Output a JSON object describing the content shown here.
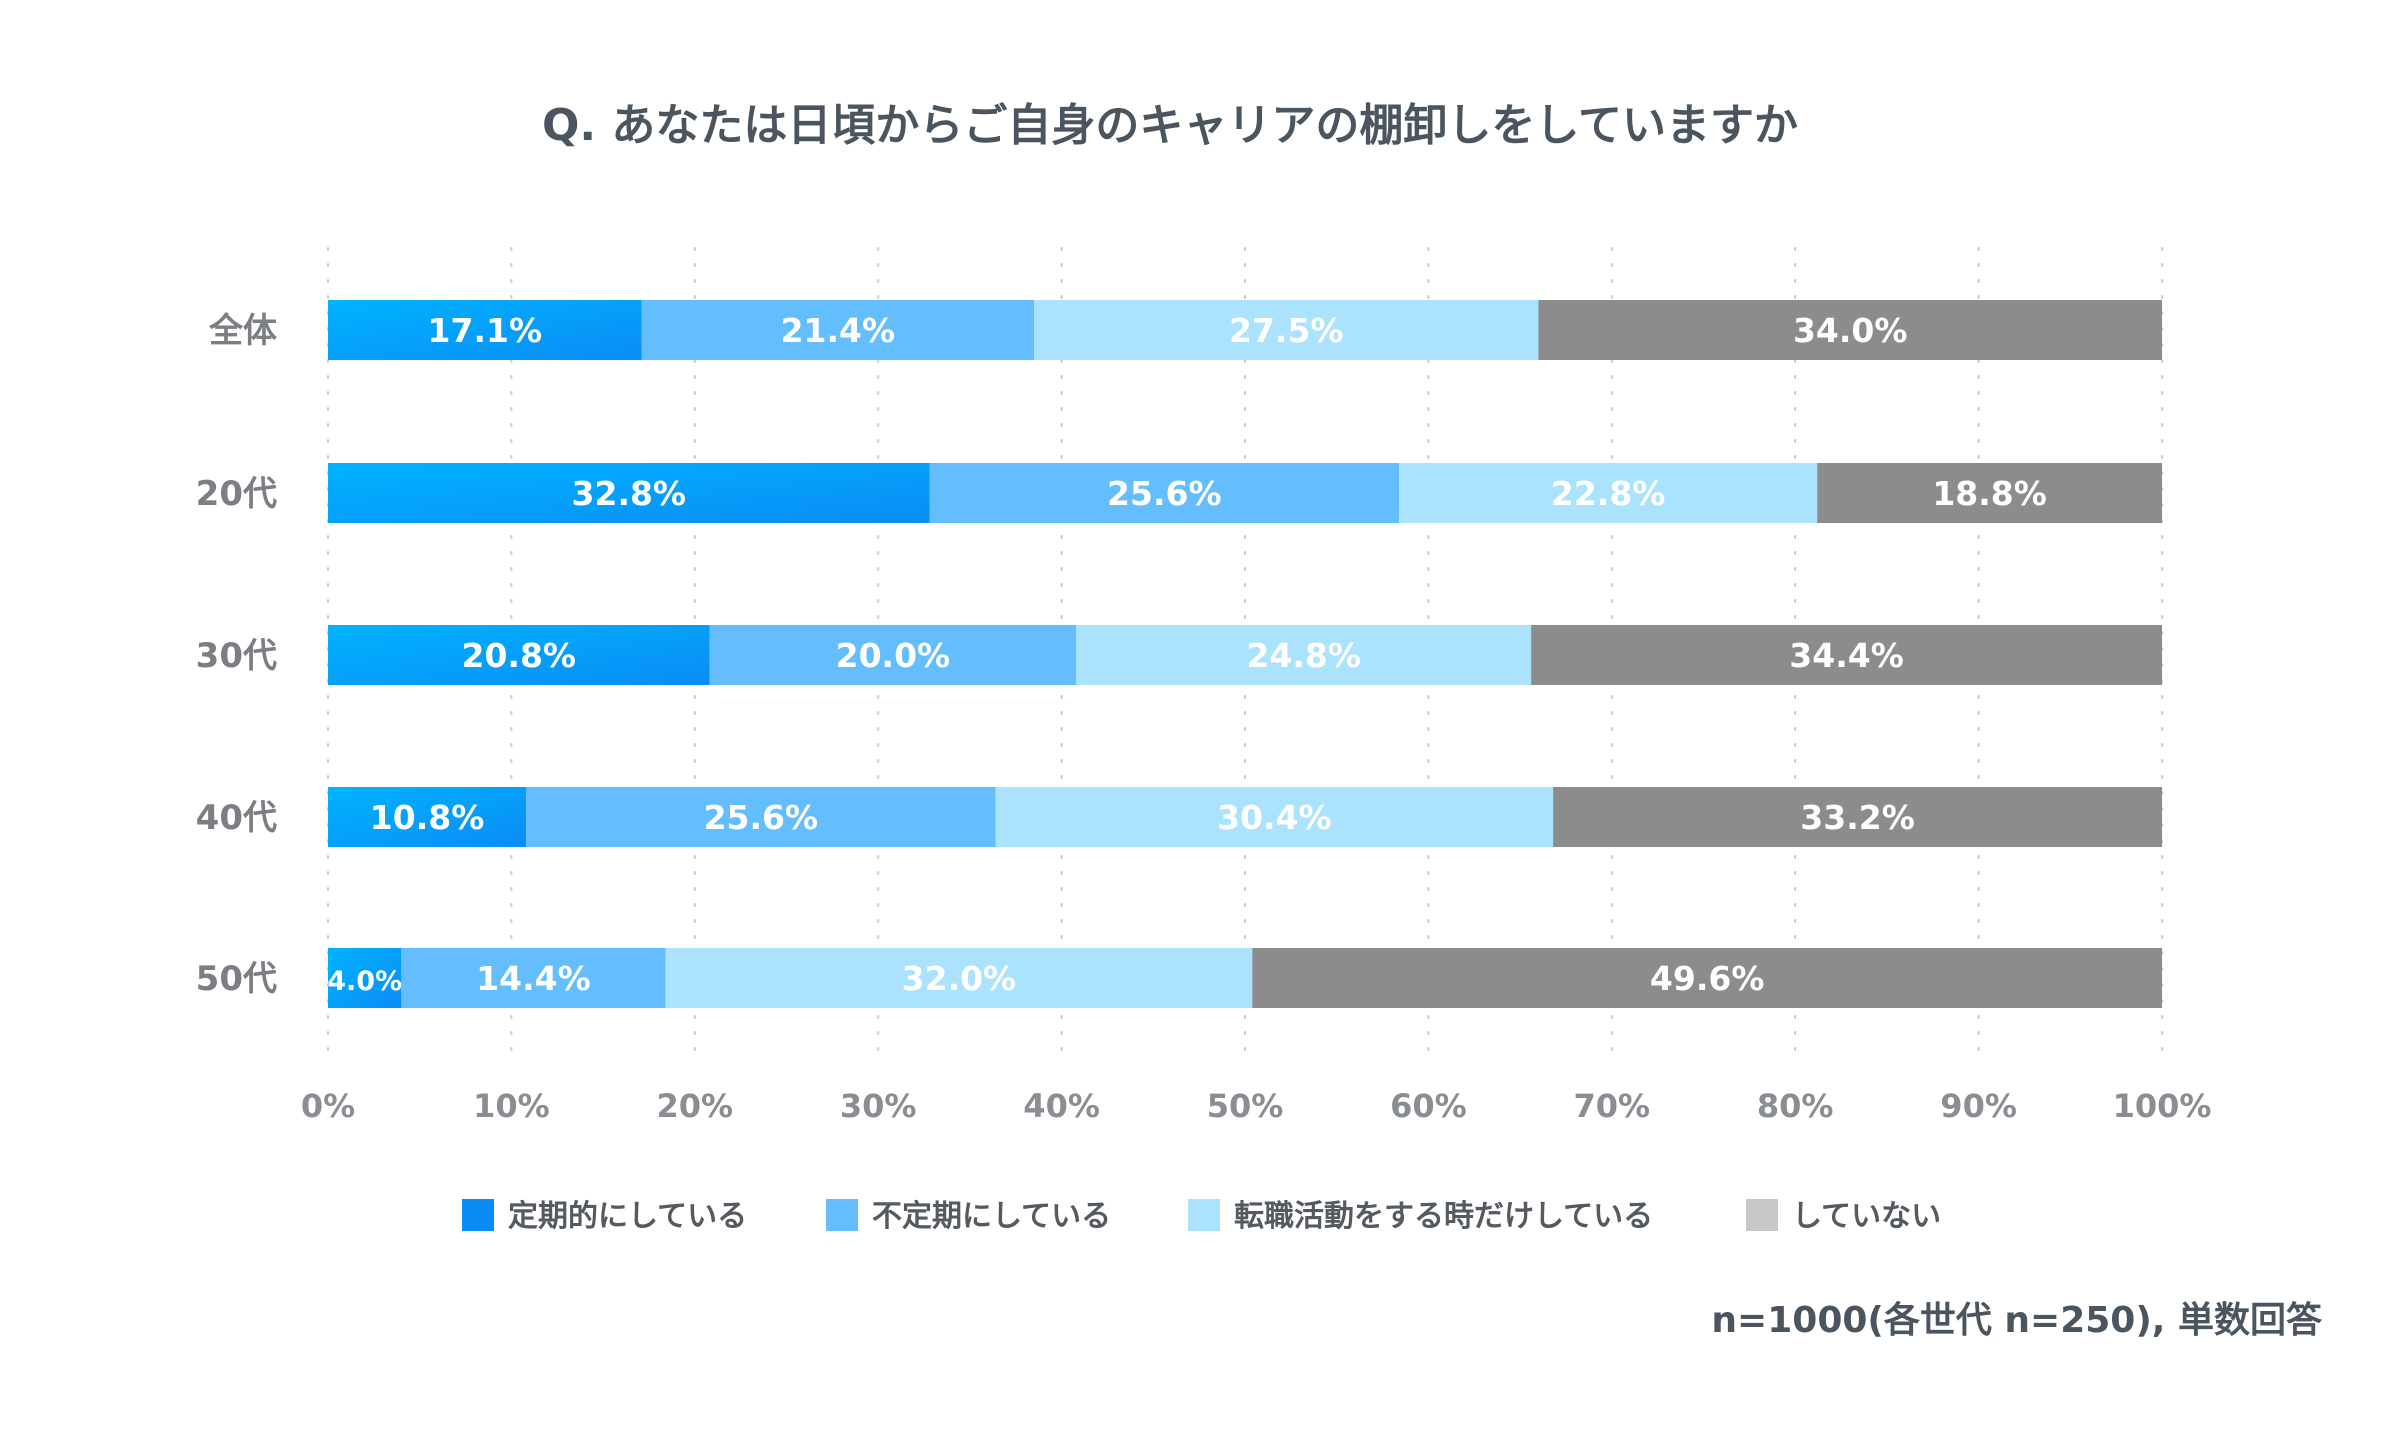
{
  "chart_data": {
    "type": "bar",
    "orientation": "horizontal",
    "stacked": true,
    "title": "Q. あなたは日頃からご自身のキャリアの棚卸しをしていますか",
    "categories": [
      "全体",
      "20代",
      "30代",
      "40代",
      "50代"
    ],
    "series": [
      {
        "name": "定期的にしている",
        "color": "#0a8cf5",
        "gradient_start": "#00b3ff",
        "values": [
          17.1,
          32.8,
          20.8,
          10.8,
          4.0
        ],
        "labels": [
          "17.1%",
          "32.8%",
          "20.8%",
          "10.8%",
          "4.0%"
        ]
      },
      {
        "name": "不定期にしている",
        "color": "#64bdfc",
        "values": [
          21.4,
          25.6,
          20.0,
          25.6,
          14.4
        ],
        "labels": [
          "21.4%",
          "25.6%",
          "20.0%",
          "25.6%",
          "14.4%"
        ]
      },
      {
        "name": "転職活動をする時だけしている",
        "color": "#abe2fd",
        "values": [
          27.5,
          22.8,
          24.8,
          30.4,
          32.0
        ],
        "labels": [
          "27.5%",
          "22.8%",
          "24.8%",
          "30.4%",
          "32.0%"
        ]
      },
      {
        "name": "していない",
        "color": "#8c8c8c",
        "legend_color": "#c8c8c8",
        "values": [
          34.0,
          18.8,
          34.4,
          33.2,
          49.6
        ],
        "labels": [
          "34.0%",
          "18.8%",
          "34.4%",
          "33.2%",
          "49.6%"
        ]
      }
    ],
    "xlim": [
      0,
      100
    ],
    "xticks": [
      0,
      10,
      20,
      30,
      40,
      50,
      60,
      70,
      80,
      90,
      100
    ],
    "xtick_labels": [
      "0%",
      "10%",
      "20%",
      "30%",
      "40%",
      "50%",
      "60%",
      "70%",
      "80%",
      "90%",
      "100%"
    ],
    "grid": true,
    "legend_position": "bottom",
    "note": "n=1000(各世代 n=250), 単数回答"
  }
}
